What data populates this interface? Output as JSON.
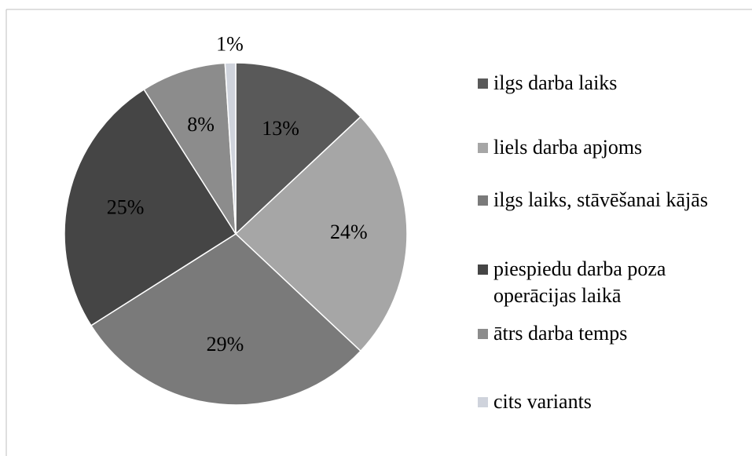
{
  "chart_data": {
    "type": "pie",
    "categories": [
      "ilgs darba laiks",
      "liels darba apjoms",
      "ilgs laiks, stāvēšanai kājās",
      "piespiedu darba poza operācijas laikā",
      "ātrs darba temps",
      "cits variants"
    ],
    "values": [
      13,
      24,
      29,
      25,
      8,
      1
    ],
    "value_labels": [
      "13%",
      "24%",
      "29%",
      "25%",
      "8%",
      "1%"
    ],
    "colors": [
      "#595959",
      "#a6a6a6",
      "#7a7a7a",
      "#454545",
      "#8c8c8c",
      "#cfd3dc"
    ],
    "legend": "right"
  }
}
